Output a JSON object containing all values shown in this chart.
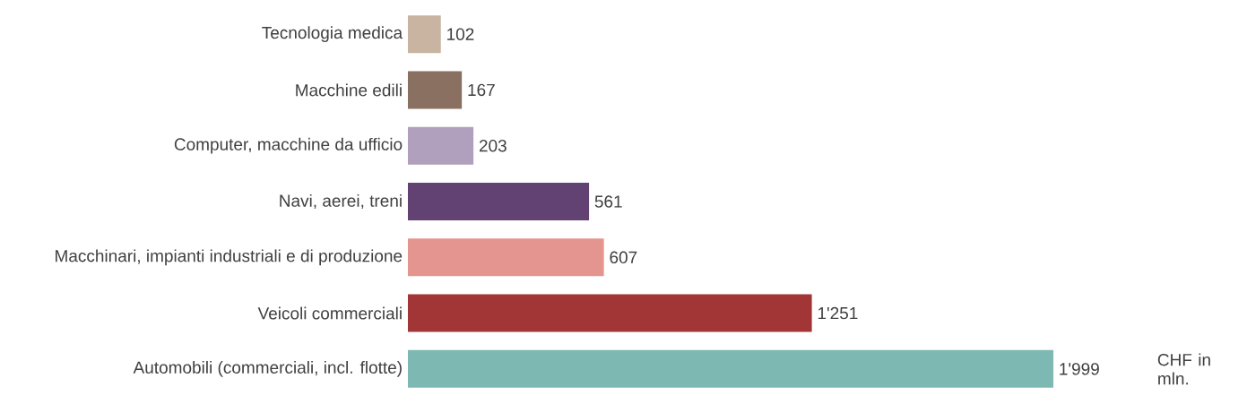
{
  "chart_data": {
    "type": "bar",
    "orientation": "horizontal",
    "categories": [
      "Tecnologia medica",
      "Macchine edili",
      "Computer, macchine da ufficio",
      "Navi, aerei, treni",
      "Macchinari, impianti industriali e di produzione",
      "Veicoli commerciali",
      "Automobili (commerciali, incl. flotte)"
    ],
    "values": [
      102,
      167,
      203,
      561,
      607,
      1251,
      1999
    ],
    "value_labels": [
      "102",
      "167",
      "203",
      "561",
      "607",
      "1'251",
      "1'999"
    ],
    "colors": [
      "#c8b4a0",
      "#8a7060",
      "#b09fbd",
      "#614272",
      "#e4958f",
      "#a23535",
      "#7eb8b3"
    ],
    "annotations": [
      "CHF in mln."
    ]
  }
}
